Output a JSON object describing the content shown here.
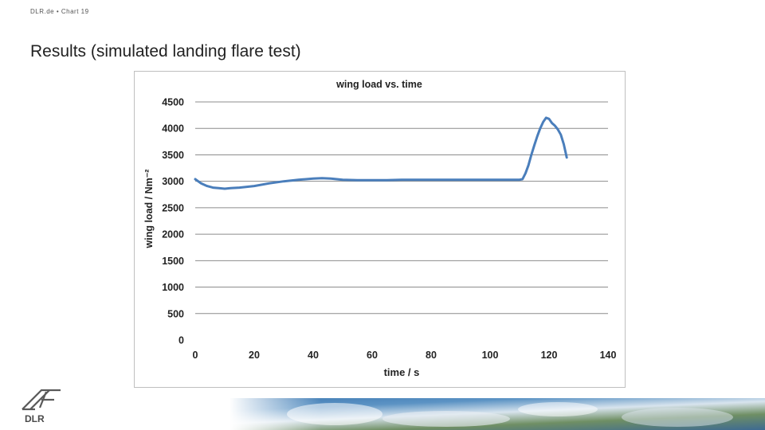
{
  "header": {
    "meta": "DLR.de • Chart 19"
  },
  "slide": {
    "title": "Results (simulated landing flare test)"
  },
  "logo": {
    "text": "DLR",
    "icon": "dlr-logo-icon"
  },
  "colors": {
    "series": "#4a7ebb",
    "grid": "#8c8c8c",
    "frame": "#bfbfbf"
  },
  "chart_data": {
    "type": "line",
    "title": "wing load vs. time",
    "xlabel": "time / s",
    "ylabel": "wing load / Nm⁻²",
    "xlim": [
      0,
      140
    ],
    "ylim": [
      0,
      4500
    ],
    "xticks": [
      0,
      20,
      40,
      60,
      80,
      100,
      120,
      140
    ],
    "yticks": [
      0,
      500,
      1000,
      1500,
      2000,
      2500,
      3000,
      3500,
      4000,
      4500
    ],
    "grid": "horizontal",
    "legend": "none",
    "series": [
      {
        "x": [
          0,
          2,
          4,
          6,
          8,
          10,
          12,
          15,
          20,
          25,
          30,
          35,
          40,
          43,
          46,
          50,
          55,
          60,
          65,
          70,
          80,
          90,
          100,
          105,
          108,
          110,
          111,
          112,
          113,
          114,
          115,
          116,
          117,
          118,
          119,
          120,
          121,
          122,
          123,
          124,
          125,
          126
        ],
        "y": [
          3040,
          2960,
          2910,
          2880,
          2870,
          2860,
          2870,
          2880,
          2910,
          2960,
          3000,
          3030,
          3050,
          3060,
          3050,
          3030,
          3020,
          3020,
          3020,
          3030,
          3030,
          3030,
          3030,
          3030,
          3030,
          3030,
          3040,
          3150,
          3300,
          3500,
          3680,
          3850,
          4000,
          4120,
          4200,
          4180,
          4100,
          4050,
          3980,
          3880,
          3700,
          3450
        ]
      }
    ]
  }
}
